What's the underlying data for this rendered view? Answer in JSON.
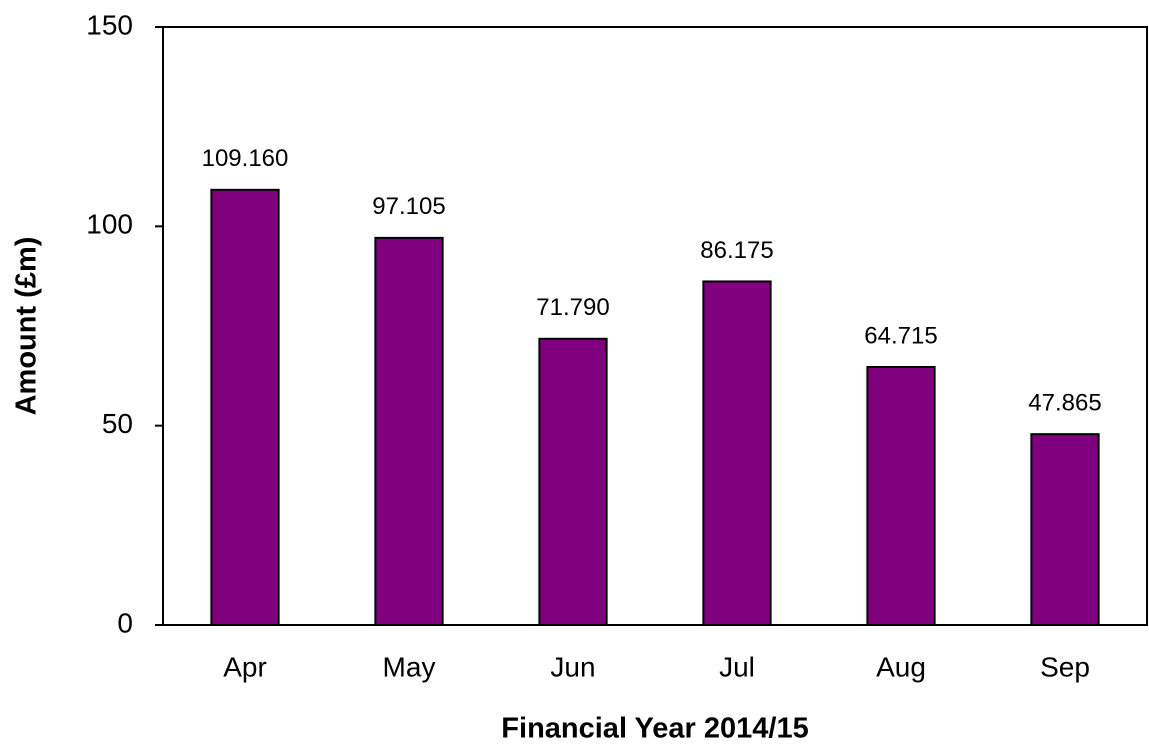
{
  "chart_data": {
    "type": "bar",
    "x_label": "Financial Year 2014/15",
    "y_label": "Amount (£m)",
    "categories": [
      "Apr",
      "May",
      "Jun",
      "Jul",
      "Aug",
      "Sep"
    ],
    "values": [
      109.16,
      97.105,
      71.79,
      86.175,
      64.715,
      47.865
    ],
    "value_labels": [
      "109.160",
      "97.105",
      "71.790",
      "86.175",
      "64.715",
      "47.865"
    ],
    "color": "#800080",
    "ylim": [
      0,
      150
    ],
    "yticks": [
      0,
      50,
      100,
      150
    ],
    "grid": false
  }
}
